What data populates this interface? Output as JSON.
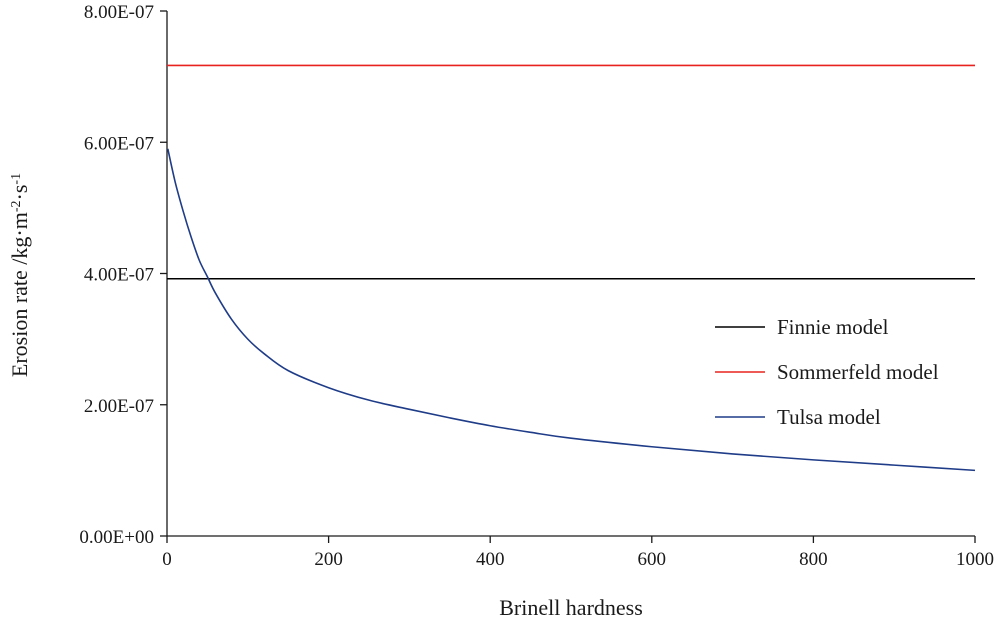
{
  "chart_data": {
    "type": "line",
    "title": "",
    "xlabel": "Brinell hardness",
    "ylabel": {
      "main": "Erosion rate /kg·m",
      "sup1": "-2",
      "mid": "·s",
      "sup2": "-1"
    },
    "xlim": [
      0,
      1000
    ],
    "ylim": [
      0,
      8e-07
    ],
    "xticks": [
      0,
      200,
      400,
      600,
      800,
      1000
    ],
    "xtick_labels": [
      "0",
      "200",
      "400",
      "600",
      "800",
      "1000"
    ],
    "yticks": [
      0,
      2e-07,
      4e-07,
      6e-07,
      8e-07
    ],
    "ytick_labels": [
      "0.00E+00",
      "2.00E-07",
      "4.00E-07",
      "6.00E-07",
      "8.00E-07"
    ],
    "grid": false,
    "legend_position": "right",
    "series": [
      {
        "name": "Finnie model",
        "color": "#000000",
        "x": [
          0,
          1000
        ],
        "y": [
          3.92e-07,
          3.92e-07
        ]
      },
      {
        "name": "Sommerfeld model",
        "color": "#e8231f",
        "x": [
          0,
          1000
        ],
        "y": [
          7.17e-07,
          7.17e-07
        ]
      },
      {
        "name": "Tulsa model",
        "color": "#1f3c88",
        "x": [
          1,
          10,
          20,
          30,
          40,
          50,
          60,
          80,
          100,
          120,
          150,
          200,
          250,
          300,
          350,
          400,
          450,
          500,
          600,
          700,
          800,
          900,
          1000
        ],
        "y": [
          5.9e-07,
          5.4e-07,
          4.95e-07,
          4.55e-07,
          4.2e-07,
          3.95e-07,
          3.7e-07,
          3.3e-07,
          3e-07,
          2.78e-07,
          2.52e-07,
          2.26e-07,
          2.07e-07,
          1.93e-07,
          1.8e-07,
          1.68e-07,
          1.58e-07,
          1.49e-07,
          1.36e-07,
          1.25e-07,
          1.16e-07,
          1.08e-07,
          1e-07
        ]
      }
    ]
  }
}
